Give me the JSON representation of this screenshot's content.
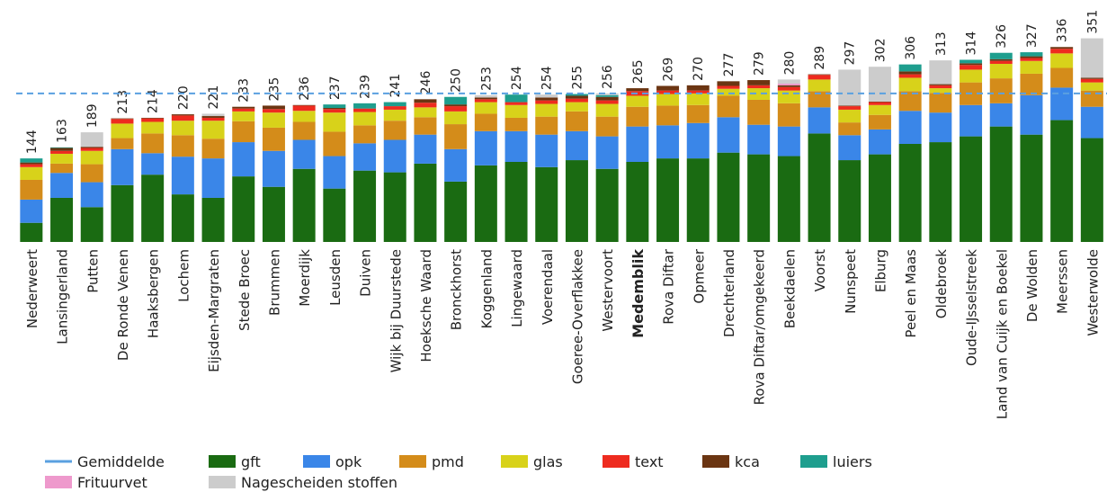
{
  "chart_data": {
    "type": "stacked_bar",
    "categories": [
      "Nederweert",
      "Lansingerland",
      "Putten",
      "De Ronde Venen",
      "Haaksbergen",
      "Lochem",
      "Eijsden-Margraten",
      "Stede Broec",
      "Brummen",
      "Moerdijk",
      "Leusden",
      "Duiven",
      "Wijk bij Duurstede",
      "Hoeksche Waard",
      "Bronckhorst",
      "Koggenland",
      "Lingewaard",
      "Voerendaal",
      "Goeree-Overflakkee",
      "Westervoort",
      "Medemblik",
      "Rova Diftar",
      "Opmeer",
      "Drechterland",
      "Rova Diftar/omgekeerd",
      "Beekdaelen",
      "Voorst",
      "Nunspeet",
      "Elburg",
      "Peel en Maas",
      "Oldebroek",
      "Oude-IJsselstreek",
      "Land van Cuijk en Boekel",
      "De Wolden",
      "Meerssen",
      "Westerwolde"
    ],
    "highlight": "Medemblik",
    "totals": [
      144,
      163,
      189,
      213,
      214,
      220,
      221,
      233,
      235,
      236,
      237,
      239,
      241,
      246,
      250,
      253,
      254,
      254,
      255,
      256,
      265,
      269,
      270,
      277,
      279,
      280,
      289,
      297,
      302,
      306,
      313,
      314,
      326,
      327,
      336,
      351
    ],
    "average": {
      "name": "Gemiddelde",
      "value": 256,
      "color": "#5aa0e0"
    },
    "series": [
      {
        "name": "gft",
        "color": "#1a6b12",
        "values": [
          33,
          76,
          60,
          98,
          116,
          82,
          76,
          113,
          95,
          126,
          92,
          123,
          120,
          135,
          104,
          132,
          138,
          129,
          141,
          126,
          138,
          144,
          144,
          154,
          151,
          148,
          187,
          141,
          151,
          169,
          172,
          182,
          199,
          185,
          210,
          179
        ]
      },
      {
        "name": "opk",
        "color": "#3a86e8",
        "values": [
          40,
          43,
          43,
          62,
          37,
          65,
          68,
          59,
          62,
          50,
          56,
          47,
          56,
          50,
          56,
          59,
          53,
          56,
          50,
          56,
          61,
          57,
          61,
          61,
          51,
          51,
          45,
          43,
          43,
          57,
          51,
          54,
          40,
          68,
          56,
          54
        ]
      },
      {
        "name": "pmd",
        "color": "#d48c1a",
        "values": [
          34,
          16,
          31,
          19,
          34,
          37,
          34,
          36,
          40,
          31,
          42,
          31,
          33,
          30,
          43,
          30,
          23,
          31,
          34,
          34,
          34,
          34,
          31,
          37,
          43,
          40,
          28,
          22,
          25,
          34,
          34,
          39,
          43,
          37,
          34,
          28
        ]
      },
      {
        "name": "glas",
        "color": "#d8d21a",
        "values": [
          22,
          17,
          23,
          25,
          20,
          25,
          31,
          17,
          26,
          19,
          33,
          23,
          19,
          17,
          22,
          20,
          22,
          22,
          16,
          22,
          19,
          20,
          20,
          12,
          20,
          22,
          20,
          22,
          17,
          23,
          8,
          22,
          25,
          22,
          25,
          14
        ]
      },
      {
        "name": "text",
        "color": "#ee2b1f",
        "values": [
          5,
          5,
          5,
          8,
          6,
          9,
          5,
          5,
          6,
          9,
          6,
          6,
          6,
          8,
          9,
          5,
          5,
          6,
          6,
          6,
          8,
          6,
          5,
          5,
          5,
          6,
          8,
          6,
          5,
          6,
          5,
          8,
          5,
          5,
          8,
          6
        ]
      },
      {
        "name": "kca",
        "color": "#6b3512",
        "values": [
          3,
          5,
          2,
          1,
          1,
          2,
          3,
          3,
          6,
          1,
          2,
          0,
          0,
          6,
          3,
          3,
          0,
          5,
          5,
          6,
          5,
          8,
          9,
          8,
          9,
          3,
          1,
          1,
          1,
          5,
          2,
          3,
          3,
          3,
          3,
          2
        ]
      },
      {
        "name": "luiers",
        "color": "#1e9e8e",
        "values": [
          7,
          1,
          0,
          0,
          0,
          0,
          0,
          0,
          0,
          0,
          6,
          9,
          7,
          0,
          13,
          0,
          13,
          0,
          3,
          3,
          0,
          0,
          0,
          0,
          0,
          0,
          0,
          0,
          0,
          12,
          0,
          6,
          11,
          7,
          0,
          0
        ]
      },
      {
        "name": "Frituurvet",
        "color": "#ee99cc",
        "values": [
          0,
          0,
          0,
          0,
          0,
          0,
          0,
          0,
          0,
          0,
          0,
          0,
          0,
          0,
          0,
          0,
          0,
          0,
          0,
          0,
          0,
          0,
          0,
          0,
          0,
          3,
          0,
          0,
          0,
          0,
          0,
          0,
          0,
          0,
          0,
          0
        ]
      },
      {
        "name": "Nagescheiden stoffen",
        "color": "#cccccc",
        "values": [
          0,
          0,
          25,
          0,
          0,
          0,
          4,
          0,
          0,
          0,
          0,
          0,
          0,
          0,
          0,
          4,
          0,
          5,
          0,
          3,
          0,
          0,
          0,
          0,
          0,
          7,
          0,
          62,
          60,
          0,
          41,
          0,
          0,
          0,
          0,
          68
        ]
      }
    ],
    "ylim": [
      0,
      400
    ]
  }
}
